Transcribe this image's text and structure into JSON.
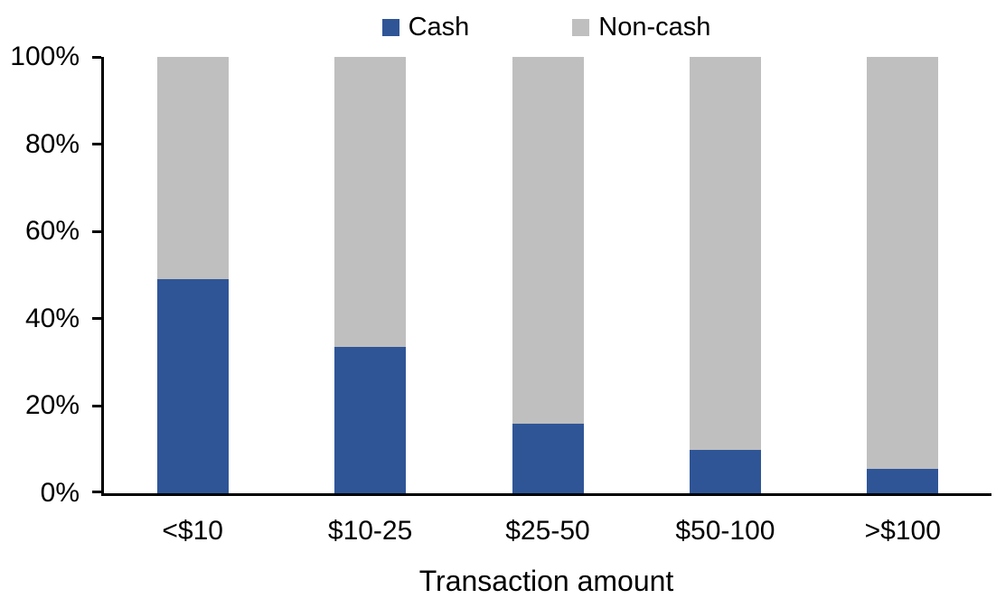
{
  "chart_data": {
    "type": "bar",
    "stacked": true,
    "stacked_total": 100,
    "title": "",
    "xlabel": "Transaction amount",
    "ylabel": "",
    "categories": [
      "<$10",
      "$10-25",
      "$25-50",
      "$50-100",
      ">$100"
    ],
    "series": [
      {
        "name": "Cash",
        "color": "#2F5597",
        "values": [
          49,
          33.5,
          16,
          10,
          5.5
        ]
      },
      {
        "name": "Non-cash",
        "color": "#BFBFBF",
        "values": [
          51,
          66.5,
          84,
          90,
          94.5
        ]
      }
    ],
    "ylim": [
      0,
      100
    ],
    "ytick_values": [
      0,
      20,
      40,
      60,
      80,
      100
    ],
    "yticks": [
      "0%",
      "20%",
      "40%",
      "60%",
      "80%",
      "100%"
    ],
    "legend_position": "top",
    "grid": false,
    "axis_color": "#000000",
    "text_color": "#000000",
    "background_color": "#FFFFFF"
  }
}
